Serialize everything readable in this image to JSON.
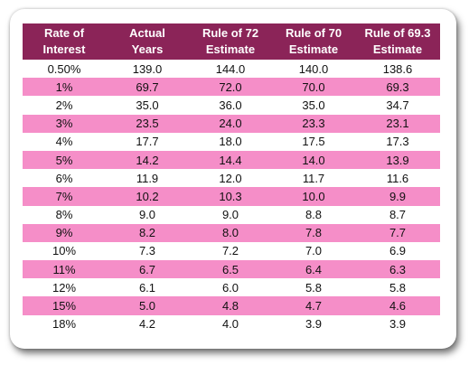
{
  "table": {
    "headers": [
      [
        "Rate of",
        "Interest"
      ],
      [
        "Actual",
        "Years"
      ],
      [
        "Rule of 72",
        "Estimate"
      ],
      [
        "Rule of 70",
        "Estimate"
      ],
      [
        "Rule of 69.3",
        "Estimate"
      ]
    ],
    "rows": [
      [
        "0.50%",
        "139.0",
        "144.0",
        "140.0",
        "138.6"
      ],
      [
        "1%",
        "69.7",
        "72.0",
        "70.0",
        "69.3"
      ],
      [
        "2%",
        "35.0",
        "36.0",
        "35.0",
        "34.7"
      ],
      [
        "3%",
        "23.5",
        "24.0",
        "23.3",
        "23.1"
      ],
      [
        "4%",
        "17.7",
        "18.0",
        "17.5",
        "17.3"
      ],
      [
        "5%",
        "14.2",
        "14.4",
        "14.0",
        "13.9"
      ],
      [
        "6%",
        "11.9",
        "12.0",
        "11.7",
        "11.6"
      ],
      [
        "7%",
        "10.2",
        "10.3",
        "10.0",
        "9.9"
      ],
      [
        "8%",
        "9.0",
        "9.0",
        "8.8",
        "8.7"
      ],
      [
        "9%",
        "8.2",
        "8.0",
        "7.8",
        "7.7"
      ],
      [
        "10%",
        "7.3",
        "7.2",
        "7.0",
        "6.9"
      ],
      [
        "11%",
        "6.7",
        "6.5",
        "6.4",
        "6.3"
      ],
      [
        "12%",
        "6.1",
        "6.0",
        "5.8",
        "5.8"
      ],
      [
        "15%",
        "5.0",
        "4.8",
        "4.7",
        "4.6"
      ],
      [
        "18%",
        "4.2",
        "4.0",
        "3.9",
        "3.9"
      ]
    ]
  },
  "colors": {
    "header_bg": "#8b2458",
    "header_text": "#ffffff",
    "band_pink": "#f58ec8",
    "band_white": "#ffffff"
  }
}
